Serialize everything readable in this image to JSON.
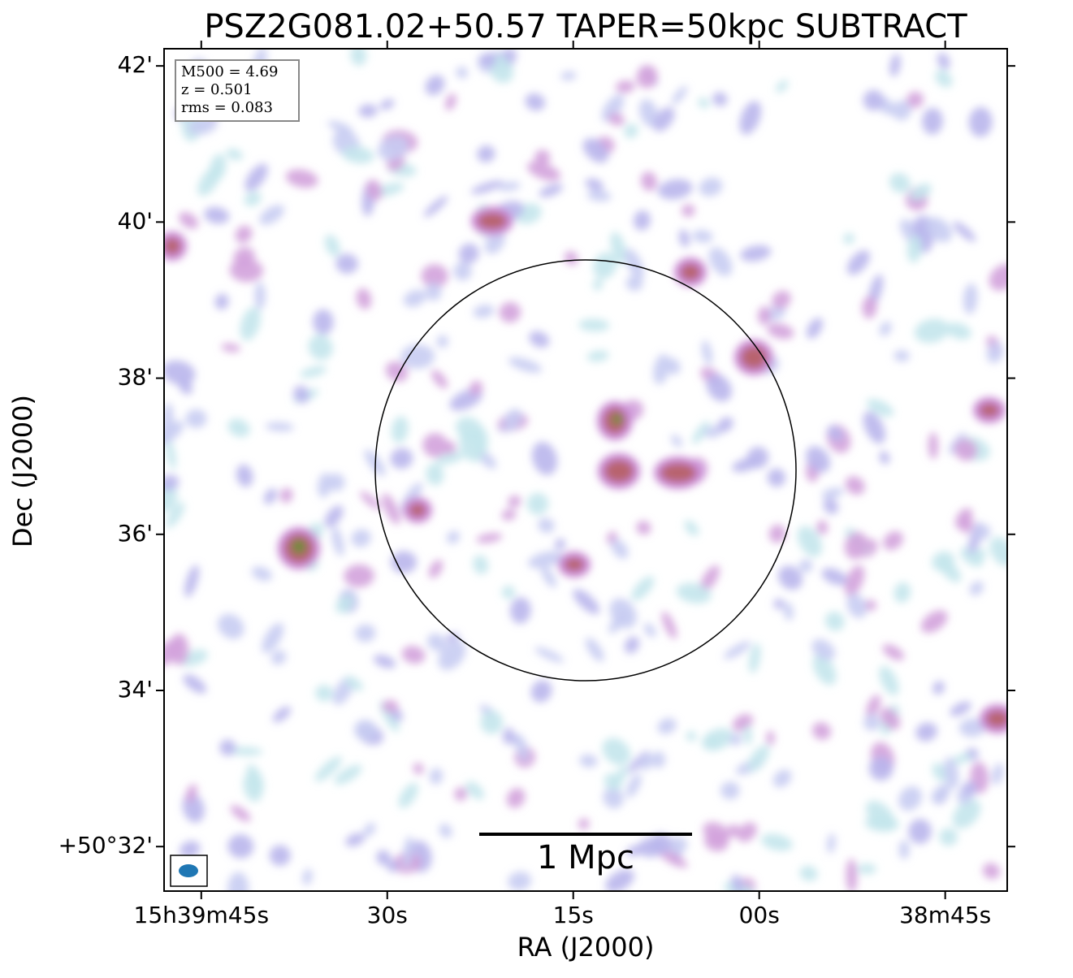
{
  "chart_data": {
    "type": "image",
    "title": "PSZ2G081.02+50.57 TAPER=50kpc SUBTRACT",
    "x_label": "RA (J2000)",
    "y_label": "Dec (J2000)",
    "xlim": [
      2388,
      2320
    ],
    "ylim": [
      31.43,
      42.22
    ],
    "xticks": [
      {
        "value": 2385,
        "label": "15h39m45s"
      },
      {
        "value": 2370,
        "label": "30s"
      },
      {
        "value": 2355,
        "label": "15s"
      },
      {
        "value": 2340,
        "label": "00s"
      },
      {
        "value": 2325,
        "label": "38m45s"
      }
    ],
    "yticks": [
      {
        "value": 42,
        "label": "42'"
      },
      {
        "value": 40,
        "label": "40'"
      },
      {
        "value": 38,
        "label": "38'"
      },
      {
        "value": 36,
        "label": "36'"
      },
      {
        "value": 34,
        "label": "34'"
      },
      {
        "value": 32,
        "label": "+50°32'"
      }
    ],
    "annotations": [
      "M500 = 4.69",
      "z = 0.501",
      "rms = 0.083"
    ],
    "scale_bar_label": "1 Mpc"
  }
}
